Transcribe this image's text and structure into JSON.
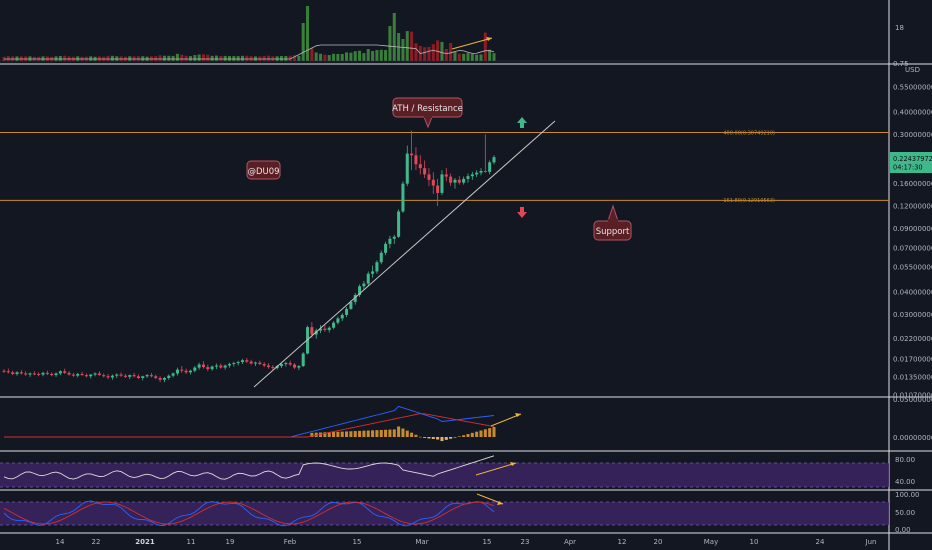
{
  "colors": {
    "background": "#131722",
    "bull": "#3fb88a",
    "bear": "#e04757",
    "vol_bull": "#3a7e3b",
    "vol_bear": "#8e1c24",
    "fib_line": "#c98a2d",
    "trend_line": "#c7c7c7",
    "annotation_fill": "#5a1e25",
    "annotation_border": "#b35560",
    "arrow_yellow": "#f0b43c",
    "rsi_band": "#3b2463",
    "current_price_tag": "#3fb88a"
  },
  "annotations": {
    "username": "@DU09",
    "resistance": "ATH / Resistance",
    "support": "Support"
  },
  "chart_data": [
    {
      "panel": "volume",
      "type": "bar",
      "axis_labels": [
        "18",
        "0.75"
      ],
      "series": [
        {
          "name": "Volume MA",
          "type": "line"
        }
      ]
    },
    {
      "panel": "price",
      "type": "candlestick",
      "scale": "log",
      "currency": "USD",
      "y_ticks": [
        "0.55000000",
        "0.40000000",
        "0.30000000",
        "0.16000000",
        "0.12000000",
        "0.09000000",
        "0.07000000",
        "0.05500000",
        "0.04000000",
        "0.03000000",
        "0.02200000",
        "0.01700000",
        "0.01350000",
        "0.01070000"
      ],
      "current_price": "0.22437972",
      "countdown": "04:17:30",
      "fib_levels": [
        {
          "label": "400.00(0.30749210)",
          "value": 0.3075
        },
        {
          "label": "161.80(0.12910563)",
          "value": 0.1291
        }
      ],
      "candles": [
        {
          "o": 0.0146,
          "h": 0.0149,
          "l": 0.0142,
          "c": 0.0145
        },
        {
          "o": 0.0145,
          "h": 0.015,
          "l": 0.0141,
          "c": 0.0143
        },
        {
          "o": 0.0143,
          "h": 0.0146,
          "l": 0.0138,
          "c": 0.014
        },
        {
          "o": 0.014,
          "h": 0.0145,
          "l": 0.0137,
          "c": 0.0143
        },
        {
          "o": 0.0143,
          "h": 0.0147,
          "l": 0.0139,
          "c": 0.0141
        },
        {
          "o": 0.0141,
          "h": 0.0145,
          "l": 0.0137,
          "c": 0.0139
        },
        {
          "o": 0.0139,
          "h": 0.0143,
          "l": 0.0135,
          "c": 0.0141
        },
        {
          "o": 0.0141,
          "h": 0.0145,
          "l": 0.0138,
          "c": 0.014
        },
        {
          "o": 0.014,
          "h": 0.0143,
          "l": 0.0136,
          "c": 0.0139
        },
        {
          "o": 0.0139,
          "h": 0.0144,
          "l": 0.0136,
          "c": 0.0142
        },
        {
          "o": 0.0142,
          "h": 0.0146,
          "l": 0.0138,
          "c": 0.014
        },
        {
          "o": 0.014,
          "h": 0.0143,
          "l": 0.0136,
          "c": 0.0138
        },
        {
          "o": 0.0138,
          "h": 0.0143,
          "l": 0.0135,
          "c": 0.0141
        },
        {
          "o": 0.0141,
          "h": 0.0147,
          "l": 0.0138,
          "c": 0.0145
        },
        {
          "o": 0.0145,
          "h": 0.015,
          "l": 0.014,
          "c": 0.0142
        },
        {
          "o": 0.0142,
          "h": 0.0145,
          "l": 0.0137,
          "c": 0.0139
        },
        {
          "o": 0.0139,
          "h": 0.0142,
          "l": 0.0135,
          "c": 0.0137
        },
        {
          "o": 0.0137,
          "h": 0.0142,
          "l": 0.0134,
          "c": 0.014
        },
        {
          "o": 0.014,
          "h": 0.0144,
          "l": 0.0137,
          "c": 0.0138
        },
        {
          "o": 0.0138,
          "h": 0.0141,
          "l": 0.0134,
          "c": 0.0136
        },
        {
          "o": 0.0136,
          "h": 0.014,
          "l": 0.0132,
          "c": 0.0139
        },
        {
          "o": 0.0139,
          "h": 0.0143,
          "l": 0.0136,
          "c": 0.0141
        },
        {
          "o": 0.0141,
          "h": 0.0145,
          "l": 0.0137,
          "c": 0.0138
        },
        {
          "o": 0.0138,
          "h": 0.0141,
          "l": 0.0134,
          "c": 0.0136
        },
        {
          "o": 0.0136,
          "h": 0.014,
          "l": 0.0131,
          "c": 0.0134
        },
        {
          "o": 0.0134,
          "h": 0.0139,
          "l": 0.013,
          "c": 0.0137
        },
        {
          "o": 0.0137,
          "h": 0.0141,
          "l": 0.0133,
          "c": 0.0139
        },
        {
          "o": 0.0139,
          "h": 0.0143,
          "l": 0.0135,
          "c": 0.0137
        },
        {
          "o": 0.0137,
          "h": 0.014,
          "l": 0.0133,
          "c": 0.0135
        },
        {
          "o": 0.0135,
          "h": 0.0139,
          "l": 0.0131,
          "c": 0.0138
        },
        {
          "o": 0.0138,
          "h": 0.0142,
          "l": 0.0134,
          "c": 0.0136
        },
        {
          "o": 0.0136,
          "h": 0.0139,
          "l": 0.0131,
          "c": 0.0133
        },
        {
          "o": 0.0133,
          "h": 0.0137,
          "l": 0.0129,
          "c": 0.0136
        },
        {
          "o": 0.0136,
          "h": 0.014,
          "l": 0.0133,
          "c": 0.0138
        },
        {
          "o": 0.0138,
          "h": 0.0142,
          "l": 0.0134,
          "c": 0.0136
        },
        {
          "o": 0.0136,
          "h": 0.0139,
          "l": 0.0131,
          "c": 0.0133
        },
        {
          "o": 0.0133,
          "h": 0.0136,
          "l": 0.0126,
          "c": 0.013
        },
        {
          "o": 0.013,
          "h": 0.0135,
          "l": 0.0126,
          "c": 0.0133
        },
        {
          "o": 0.0133,
          "h": 0.0139,
          "l": 0.013,
          "c": 0.0137
        },
        {
          "o": 0.0137,
          "h": 0.0143,
          "l": 0.0134,
          "c": 0.0141
        },
        {
          "o": 0.0141,
          "h": 0.0152,
          "l": 0.0137,
          "c": 0.0148
        },
        {
          "o": 0.0148,
          "h": 0.0155,
          "l": 0.0142,
          "c": 0.0146
        },
        {
          "o": 0.0146,
          "h": 0.015,
          "l": 0.014,
          "c": 0.0143
        },
        {
          "o": 0.0143,
          "h": 0.0148,
          "l": 0.0139,
          "c": 0.0146
        },
        {
          "o": 0.0146,
          "h": 0.0155,
          "l": 0.0143,
          "c": 0.0152
        },
        {
          "o": 0.0152,
          "h": 0.0162,
          "l": 0.0148,
          "c": 0.0158
        },
        {
          "o": 0.0158,
          "h": 0.0165,
          "l": 0.015,
          "c": 0.0153
        },
        {
          "o": 0.0153,
          "h": 0.0158,
          "l": 0.0145,
          "c": 0.0149
        },
        {
          "o": 0.0149,
          "h": 0.0156,
          "l": 0.0146,
          "c": 0.0154
        },
        {
          "o": 0.0154,
          "h": 0.016,
          "l": 0.0149,
          "c": 0.0156
        },
        {
          "o": 0.0156,
          "h": 0.016,
          "l": 0.015,
          "c": 0.0152
        },
        {
          "o": 0.0152,
          "h": 0.0158,
          "l": 0.0148,
          "c": 0.0156
        },
        {
          "o": 0.0156,
          "h": 0.0162,
          "l": 0.0152,
          "c": 0.0159
        },
        {
          "o": 0.0159,
          "h": 0.0164,
          "l": 0.0154,
          "c": 0.0161
        },
        {
          "o": 0.0161,
          "h": 0.0166,
          "l": 0.0156,
          "c": 0.0163
        },
        {
          "o": 0.0163,
          "h": 0.017,
          "l": 0.0159,
          "c": 0.0167
        },
        {
          "o": 0.0167,
          "h": 0.0172,
          "l": 0.0161,
          "c": 0.0164
        },
        {
          "o": 0.0164,
          "h": 0.0168,
          "l": 0.0158,
          "c": 0.016
        },
        {
          "o": 0.016,
          "h": 0.0164,
          "l": 0.0155,
          "c": 0.0162
        },
        {
          "o": 0.0162,
          "h": 0.0166,
          "l": 0.0157,
          "c": 0.0159
        },
        {
          "o": 0.0159,
          "h": 0.0163,
          "l": 0.0153,
          "c": 0.0156
        },
        {
          "o": 0.0156,
          "h": 0.0161,
          "l": 0.015,
          "c": 0.0153
        },
        {
          "o": 0.0153,
          "h": 0.0157,
          "l": 0.0148,
          "c": 0.0151
        },
        {
          "o": 0.0151,
          "h": 0.0157,
          "l": 0.0148,
          "c": 0.0155
        },
        {
          "o": 0.0155,
          "h": 0.0161,
          "l": 0.0151,
          "c": 0.0159
        },
        {
          "o": 0.0159,
          "h": 0.0164,
          "l": 0.0154,
          "c": 0.0161
        },
        {
          "o": 0.0161,
          "h": 0.0166,
          "l": 0.0155,
          "c": 0.0158
        },
        {
          "o": 0.0158,
          "h": 0.0161,
          "l": 0.0149,
          "c": 0.0152
        },
        {
          "o": 0.0152,
          "h": 0.0157,
          "l": 0.0147,
          "c": 0.0155
        },
        {
          "o": 0.0155,
          "h": 0.0185,
          "l": 0.0153,
          "c": 0.0182
        },
        {
          "o": 0.0182,
          "h": 0.026,
          "l": 0.018,
          "c": 0.0255
        },
        {
          "o": 0.0255,
          "h": 0.0272,
          "l": 0.0222,
          "c": 0.0232
        },
        {
          "o": 0.0232,
          "h": 0.025,
          "l": 0.022,
          "c": 0.0244
        },
        {
          "o": 0.0244,
          "h": 0.0262,
          "l": 0.0236,
          "c": 0.025
        },
        {
          "o": 0.025,
          "h": 0.0262,
          "l": 0.024,
          "c": 0.0246
        },
        {
          "o": 0.0246,
          "h": 0.0258,
          "l": 0.0238,
          "c": 0.0253
        },
        {
          "o": 0.0253,
          "h": 0.0275,
          "l": 0.0248,
          "c": 0.027
        },
        {
          "o": 0.027,
          "h": 0.0292,
          "l": 0.0264,
          "c": 0.0285
        },
        {
          "o": 0.0285,
          "h": 0.0305,
          "l": 0.0276,
          "c": 0.0298
        },
        {
          "o": 0.0298,
          "h": 0.033,
          "l": 0.029,
          "c": 0.0322
        },
        {
          "o": 0.0322,
          "h": 0.036,
          "l": 0.0318,
          "c": 0.0352
        },
        {
          "o": 0.0352,
          "h": 0.0395,
          "l": 0.034,
          "c": 0.0385
        },
        {
          "o": 0.0385,
          "h": 0.044,
          "l": 0.0375,
          "c": 0.043
        },
        {
          "o": 0.043,
          "h": 0.046,
          "l": 0.041,
          "c": 0.0445
        },
        {
          "o": 0.0445,
          "h": 0.052,
          "l": 0.043,
          "c": 0.0505
        },
        {
          "o": 0.0505,
          "h": 0.056,
          "l": 0.048,
          "c": 0.052
        },
        {
          "o": 0.052,
          "h": 0.06,
          "l": 0.0505,
          "c": 0.0585
        },
        {
          "o": 0.0585,
          "h": 0.068,
          "l": 0.057,
          "c": 0.066
        },
        {
          "o": 0.066,
          "h": 0.076,
          "l": 0.064,
          "c": 0.074
        },
        {
          "o": 0.074,
          "h": 0.082,
          "l": 0.07,
          "c": 0.079
        },
        {
          "o": 0.079,
          "h": 0.083,
          "l": 0.074,
          "c": 0.081
        },
        {
          "o": 0.081,
          "h": 0.115,
          "l": 0.08,
          "c": 0.112
        },
        {
          "o": 0.112,
          "h": 0.165,
          "l": 0.11,
          "c": 0.16
        },
        {
          "o": 0.16,
          "h": 0.26,
          "l": 0.155,
          "c": 0.235
        },
        {
          "o": 0.235,
          "h": 0.315,
          "l": 0.19,
          "c": 0.23
        },
        {
          "o": 0.23,
          "h": 0.255,
          "l": 0.19,
          "c": 0.205
        },
        {
          "o": 0.205,
          "h": 0.23,
          "l": 0.18,
          "c": 0.195
        },
        {
          "o": 0.195,
          "h": 0.215,
          "l": 0.172,
          "c": 0.18
        },
        {
          "o": 0.18,
          "h": 0.195,
          "l": 0.155,
          "c": 0.168
        },
        {
          "o": 0.168,
          "h": 0.185,
          "l": 0.14,
          "c": 0.156
        },
        {
          "o": 0.156,
          "h": 0.17,
          "l": 0.12,
          "c": 0.142
        },
        {
          "o": 0.142,
          "h": 0.19,
          "l": 0.138,
          "c": 0.18
        },
        {
          "o": 0.18,
          "h": 0.195,
          "l": 0.165,
          "c": 0.175
        },
        {
          "o": 0.175,
          "h": 0.182,
          "l": 0.155,
          "c": 0.162
        },
        {
          "o": 0.162,
          "h": 0.172,
          "l": 0.15,
          "c": 0.168
        },
        {
          "o": 0.168,
          "h": 0.176,
          "l": 0.158,
          "c": 0.162
        },
        {
          "o": 0.162,
          "h": 0.175,
          "l": 0.158,
          "c": 0.17
        },
        {
          "o": 0.17,
          "h": 0.182,
          "l": 0.162,
          "c": 0.176
        },
        {
          "o": 0.176,
          "h": 0.186,
          "l": 0.168,
          "c": 0.18
        },
        {
          "o": 0.18,
          "h": 0.19,
          "l": 0.174,
          "c": 0.184
        },
        {
          "o": 0.184,
          "h": 0.195,
          "l": 0.178,
          "c": 0.188
        },
        {
          "o": 0.188,
          "h": 0.3,
          "l": 0.184,
          "c": 0.186
        },
        {
          "o": 0.186,
          "h": 0.215,
          "l": 0.18,
          "c": 0.21
        },
        {
          "o": 0.21,
          "h": 0.23,
          "l": 0.205,
          "c": 0.2244
        }
      ]
    },
    {
      "panel": "macd",
      "type": "histogram+line",
      "axis_labels": [
        "0.05000000",
        "0.00000000"
      ],
      "series": [
        {
          "name": "MACD"
        },
        {
          "name": "Signal"
        }
      ]
    },
    {
      "panel": "rsi",
      "type": "line",
      "axis_labels": [
        "80.00",
        "40.00"
      ],
      "upper": 70,
      "lower": 30
    },
    {
      "panel": "stoch_rsi",
      "type": "line",
      "axis_labels": [
        "100.00",
        "50.00",
        "0.00"
      ],
      "upper": 80,
      "lower": 20,
      "series": [
        {
          "name": "K"
        },
        {
          "name": "D"
        }
      ]
    }
  ],
  "x_axis": {
    "labels": [
      "14",
      "22",
      "2021",
      "11",
      "19",
      "Feb",
      "15",
      "Mar",
      "15",
      "23",
      "Apr",
      "12",
      "20",
      "May",
      "10",
      "24",
      "Jun"
    ],
    "bold": [
      "2021"
    ]
  }
}
